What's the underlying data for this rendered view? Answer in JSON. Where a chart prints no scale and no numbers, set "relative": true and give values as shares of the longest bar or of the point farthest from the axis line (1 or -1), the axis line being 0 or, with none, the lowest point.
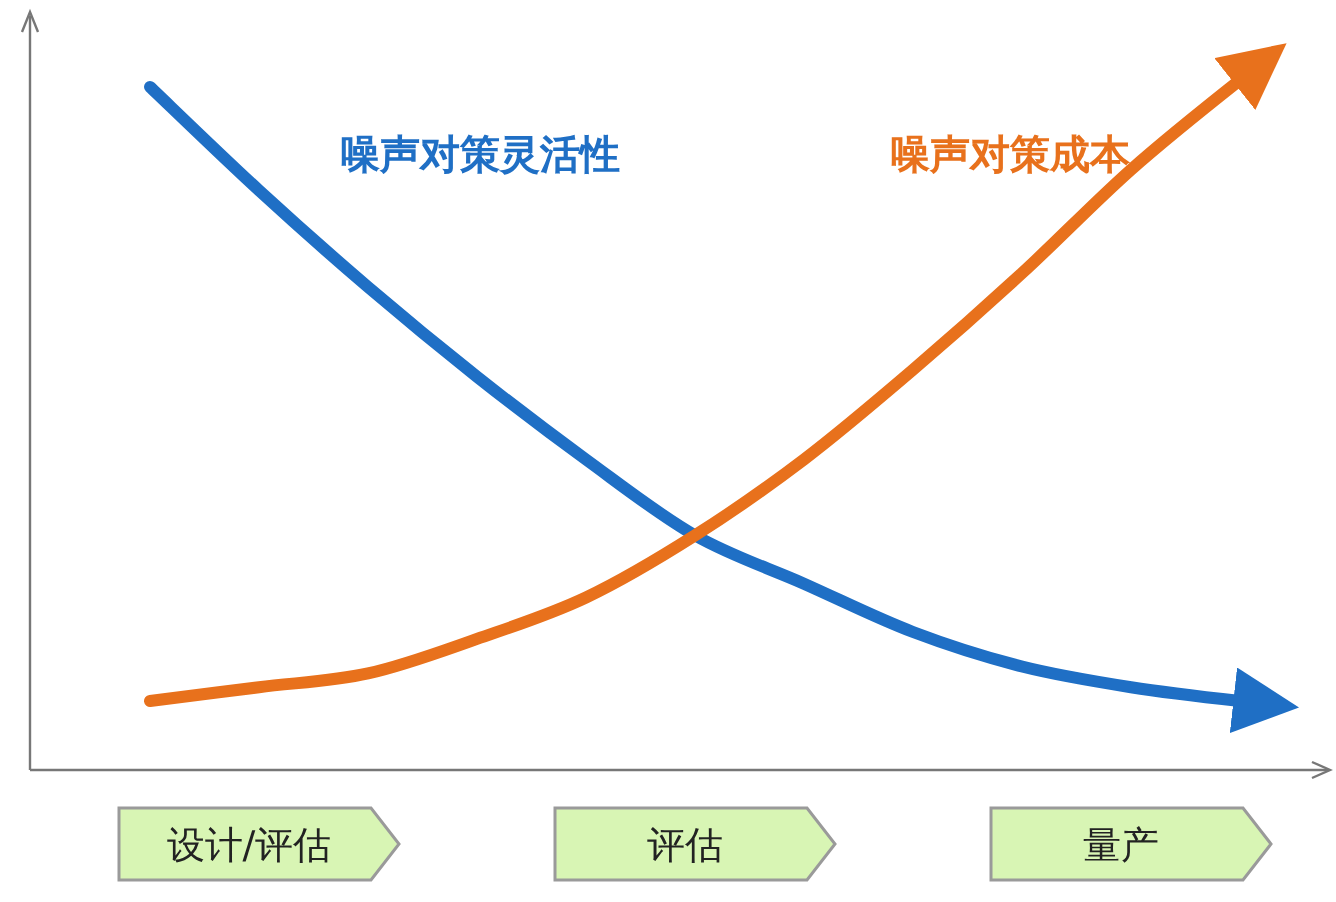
{
  "chart_data": {
    "type": "line",
    "relative": true,
    "legend": false,
    "marker": "none",
    "line_style": "solid",
    "categories": [
      null,
      "设计/评估",
      null,
      null,
      null,
      "评估",
      null,
      null,
      null,
      "量产",
      null
    ],
    "series": [
      {
        "name": "噪声对策灵活性",
        "color": "#1f6fc5",
        "values": [
          0.99,
          0.84,
          0.7,
          0.57,
          0.45,
          0.34,
          0.27,
          0.2,
          0.15,
          0.12,
          0.1
        ]
      },
      {
        "name": "噪声对策成本",
        "color": "#e8711c",
        "values": [
          0.1,
          0.12,
          0.14,
          0.19,
          0.25,
          0.34,
          0.45,
          0.58,
          0.72,
          0.87,
          1.0
        ]
      }
    ]
  }
}
